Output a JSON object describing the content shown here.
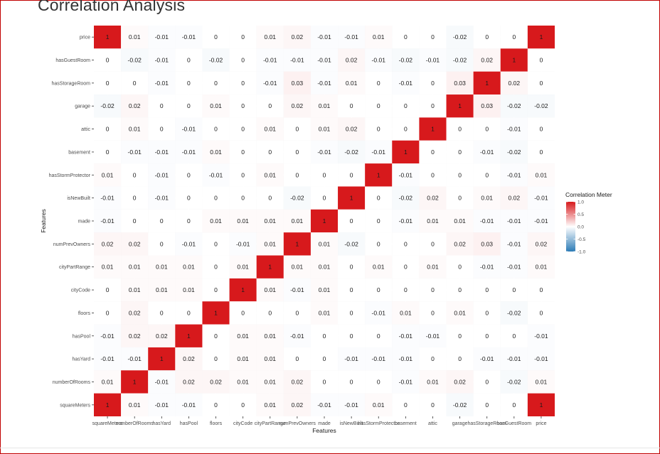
{
  "page": {
    "title": "Correlation Analysis"
  },
  "chart_data": {
    "type": "heatmap",
    "xlabel": "Features",
    "ylabel": "Features",
    "x_categories": [
      "squareMeters",
      "numberOfRooms",
      "hasYard",
      "hasPool",
      "floors",
      "cityCode",
      "cityPartRange",
      "numPrevOwners",
      "made",
      "isNewBuilt",
      "hasStormProtector",
      "basement",
      "attic",
      "garage",
      "hasStorageRoom",
      "hasGuestRoom",
      "price"
    ],
    "y_categories_top_to_bottom": [
      "price",
      "hasGuestRoom",
      "hasStorageRoom",
      "garage",
      "attic",
      "basement",
      "hasStormProtector",
      "isNewBuilt",
      "made",
      "numPrevOwners",
      "cityPartRange",
      "cityCode",
      "floors",
      "hasPool",
      "hasYard",
      "numberOfRooms",
      "squareMeters"
    ],
    "values": [
      [
        "1",
        "0.01",
        "-0.01",
        "-0.01",
        "0",
        "0",
        "0.01",
        "0.02",
        "-0.01",
        "-0.01",
        "0.01",
        "0",
        "0",
        "-0.02",
        "0",
        "0",
        "1"
      ],
      [
        "0",
        "-0.02",
        "-0.01",
        "0",
        "-0.02",
        "0",
        "-0.01",
        "-0.01",
        "-0.01",
        "0.02",
        "-0.01",
        "-0.02",
        "-0.01",
        "-0.02",
        "0.02",
        "1",
        "0"
      ],
      [
        "0",
        "0",
        "-0.01",
        "0",
        "0",
        "0",
        "-0.01",
        "0.03",
        "-0.01",
        "0.01",
        "0",
        "-0.01",
        "0",
        "0.03",
        "1",
        "0.02",
        "0"
      ],
      [
        "-0.02",
        "0.02",
        "0",
        "0",
        "0.01",
        "0",
        "0",
        "0.02",
        "0.01",
        "0",
        "0",
        "0",
        "0",
        "1",
        "0.03",
        "-0.02",
        "-0.02"
      ],
      [
        "0",
        "0.01",
        "0",
        "-0.01",
        "0",
        "0",
        "0.01",
        "0",
        "0.01",
        "0.02",
        "0",
        "0",
        "1",
        "0",
        "0",
        "-0.01",
        "0"
      ],
      [
        "0",
        "-0.01",
        "-0.01",
        "-0.01",
        "0.01",
        "0",
        "0",
        "0",
        "-0.01",
        "-0.02",
        "-0.01",
        "1",
        "0",
        "0",
        "-0.01",
        "-0.02",
        "0"
      ],
      [
        "0.01",
        "0",
        "-0.01",
        "0",
        "-0.01",
        "0",
        "0.01",
        "0",
        "0",
        "0",
        "1",
        "-0.01",
        "0",
        "0",
        "0",
        "-0.01",
        "0.01"
      ],
      [
        "-0.01",
        "0",
        "-0.01",
        "0",
        "0",
        "0",
        "0",
        "-0.02",
        "0",
        "1",
        "0",
        "-0.02",
        "0.02",
        "0",
        "0.01",
        "0.02",
        "-0.01"
      ],
      [
        "-0.01",
        "0",
        "0",
        "0",
        "0.01",
        "0.01",
        "0.01",
        "0.01",
        "1",
        "0",
        "0",
        "-0.01",
        "0.01",
        "0.01",
        "-0.01",
        "-0.01",
        "-0.01"
      ],
      [
        "0.02",
        "0.02",
        "0",
        "-0.01",
        "0",
        "-0.01",
        "0.01",
        "1",
        "0.01",
        "-0.02",
        "0",
        "0",
        "0",
        "0.02",
        "0.03",
        "-0.01",
        "0.02"
      ],
      [
        "0.01",
        "0.01",
        "0.01",
        "0.01",
        "0",
        "0.01",
        "1",
        "0.01",
        "0.01",
        "0",
        "0.01",
        "0",
        "0.01",
        "0",
        "-0.01",
        "-0.01",
        "0.01"
      ],
      [
        "0",
        "0.01",
        "0.01",
        "0.01",
        "0",
        "1",
        "0.01",
        "-0.01",
        "0.01",
        "0",
        "0",
        "0",
        "0",
        "0",
        "0",
        "0",
        "0"
      ],
      [
        "0",
        "0.02",
        "0",
        "0",
        "1",
        "0",
        "0",
        "0",
        "0.01",
        "0",
        "-0.01",
        "0.01",
        "0",
        "0.01",
        "0",
        "-0.02",
        "0"
      ],
      [
        "-0.01",
        "0.02",
        "0.02",
        "1",
        "0",
        "0.01",
        "0.01",
        "-0.01",
        "0",
        "0",
        "0",
        "-0.01",
        "-0.01",
        "0",
        "0",
        "0",
        "-0.01"
      ],
      [
        "-0.01",
        "-0.01",
        "1",
        "0.02",
        "0",
        "0.01",
        "0.01",
        "0",
        "0",
        "-0.01",
        "-0.01",
        "-0.01",
        "0",
        "0",
        "-0.01",
        "-0.01",
        "-0.01"
      ],
      [
        "0.01",
        "1",
        "-0.01",
        "0.02",
        "0.02",
        "0.01",
        "0.01",
        "0.02",
        "0",
        "0",
        "0",
        "-0.01",
        "0.01",
        "0.02",
        "0",
        "-0.02",
        "0.01"
      ],
      [
        "1",
        "0.01",
        "-0.01",
        "-0.01",
        "0",
        "0",
        "0.01",
        "0.02",
        "-0.01",
        "-0.01",
        "0.01",
        "0",
        "0",
        "-0.02",
        "0",
        "0",
        "1"
      ]
    ],
    "legend": {
      "title": "Correlation Meter",
      "position": "right",
      "ticks": [
        "1.0",
        "0.5",
        "0.0",
        "-0.5",
        "-1.0"
      ],
      "range": [
        -1,
        1
      ],
      "colors": {
        "high": "#d7191c",
        "mid": "#ffffff",
        "low": "#2c7bb6"
      }
    },
    "panel_background": "#ebebeb",
    "grid": true
  }
}
